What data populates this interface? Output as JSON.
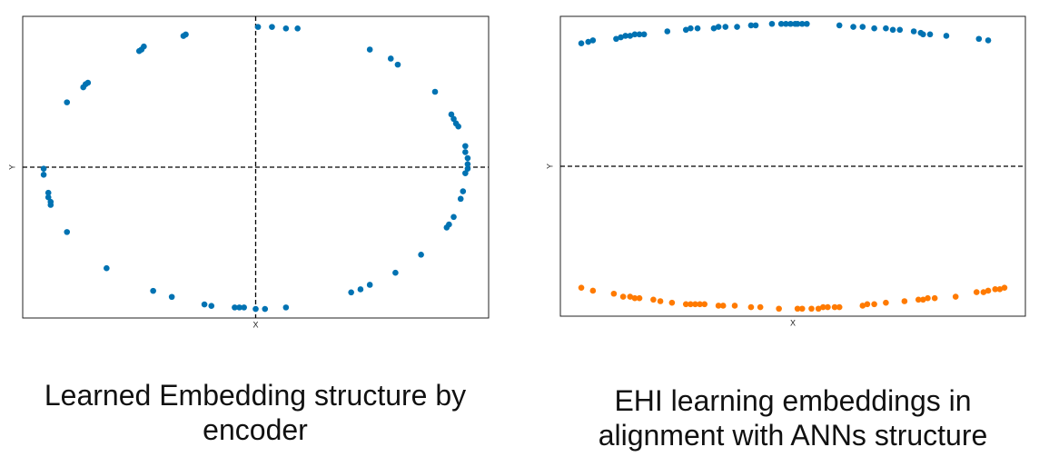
{
  "chart_data": [
    {
      "type": "scatter",
      "xlabel": "X",
      "ylabel": "Y",
      "caption": "Learned Embedding structure by encoder",
      "xlim": [
        -1,
        1
      ],
      "ylim": [
        -1,
        1
      ],
      "vlines": [
        0
      ],
      "hlines": [
        0
      ],
      "series": [
        {
          "color": "#0072b2",
          "x": [
            0.01,
            0.07,
            0.13,
            0.18,
            0.49,
            0.58,
            0.61,
            0.77,
            0.84,
            0.85,
            0.86,
            0.87,
            0.9,
            0.9,
            0.91,
            0.91,
            0.91,
            0.9,
            0.89,
            0.88,
            0.85,
            0.83,
            0.82,
            0.71,
            0.6,
            0.49,
            0.45,
            0.41,
            0.13,
            0.04,
            0.0,
            -0.05,
            -0.07,
            -0.09,
            -0.19,
            -0.22,
            -0.36,
            -0.44,
            -0.64,
            -0.81,
            -0.88,
            -0.88,
            -0.89,
            -0.89,
            -0.91,
            -0.91,
            -0.81,
            -0.74,
            -0.73,
            -0.72,
            -0.5,
            -0.49,
            -0.48,
            -0.31,
            -0.3
          ],
          "values": [
            0.93,
            0.93,
            0.92,
            0.92,
            0.78,
            0.72,
            0.68,
            0.5,
            0.35,
            0.32,
            0.29,
            0.27,
            0.14,
            0.1,
            0.06,
            0.02,
            -0.01,
            -0.04,
            -0.16,
            -0.21,
            -0.33,
            -0.38,
            -0.4,
            -0.58,
            -0.7,
            -0.78,
            -0.81,
            -0.83,
            -0.93,
            -0.94,
            -0.94,
            -0.93,
            -0.93,
            -0.93,
            -0.92,
            -0.91,
            -0.86,
            -0.82,
            -0.67,
            -0.43,
            -0.25,
            -0.23,
            -0.2,
            -0.17,
            -0.05,
            -0.01,
            0.43,
            0.53,
            0.55,
            0.56,
            0.77,
            0.78,
            0.8,
            0.87,
            0.88
          ]
        }
      ]
    },
    {
      "type": "scatter",
      "xlabel": "X",
      "ylabel": "Y",
      "caption": "EHI learning embeddings in alignment with ANNs structure",
      "xlim": [
        -1,
        1
      ],
      "ylim": [
        -1,
        1
      ],
      "hlines": [
        0
      ],
      "series": [
        {
          "color": "#0072b2",
          "x": [
            -0.91,
            -0.88,
            -0.86,
            -0.76,
            -0.74,
            -0.72,
            -0.7,
            -0.68,
            -0.66,
            -0.64,
            -0.54,
            -0.46,
            -0.44,
            -0.41,
            -0.34,
            -0.32,
            -0.29,
            -0.24,
            -0.18,
            -0.16,
            -0.09,
            -0.05,
            -0.03,
            -0.01,
            0.01,
            0.02,
            0.04,
            0.06,
            0.2,
            0.26,
            0.3,
            0.35,
            0.4,
            0.43,
            0.46,
            0.52,
            0.55,
            0.56,
            0.59,
            0.66,
            0.8,
            0.84
          ],
          "values": [
            0.82,
            0.83,
            0.84,
            0.85,
            0.86,
            0.87,
            0.87,
            0.88,
            0.88,
            0.88,
            0.9,
            0.91,
            0.92,
            0.92,
            0.92,
            0.93,
            0.93,
            0.93,
            0.94,
            0.94,
            0.95,
            0.95,
            0.95,
            0.95,
            0.95,
            0.95,
            0.95,
            0.95,
            0.94,
            0.93,
            0.93,
            0.92,
            0.92,
            0.91,
            0.91,
            0.9,
            0.89,
            0.88,
            0.88,
            0.87,
            0.85,
            0.84
          ]
        },
        {
          "color": "#ff7a00",
          "x": [
            -0.91,
            -0.86,
            -0.77,
            -0.73,
            -0.7,
            -0.68,
            -0.66,
            -0.6,
            -0.57,
            -0.52,
            -0.46,
            -0.44,
            -0.42,
            -0.4,
            -0.38,
            -0.32,
            -0.3,
            -0.25,
            -0.18,
            -0.14,
            -0.06,
            0.02,
            0.04,
            0.08,
            0.11,
            0.13,
            0.15,
            0.18,
            0.2,
            0.3,
            0.32,
            0.35,
            0.4,
            0.48,
            0.54,
            0.56,
            0.58,
            0.61,
            0.7,
            0.79,
            0.82,
            0.84,
            0.87,
            0.89,
            0.91
          ],
          "values": [
            -0.81,
            -0.83,
            -0.85,
            -0.87,
            -0.87,
            -0.88,
            -0.88,
            -0.89,
            -0.9,
            -0.91,
            -0.92,
            -0.92,
            -0.92,
            -0.92,
            -0.92,
            -0.93,
            -0.93,
            -0.93,
            -0.94,
            -0.94,
            -0.95,
            -0.95,
            -0.95,
            -0.95,
            -0.95,
            -0.94,
            -0.94,
            -0.94,
            -0.94,
            -0.93,
            -0.92,
            -0.92,
            -0.91,
            -0.9,
            -0.89,
            -0.89,
            -0.88,
            -0.88,
            -0.87,
            -0.84,
            -0.84,
            -0.83,
            -0.82,
            -0.82,
            -0.81
          ]
        }
      ]
    }
  ]
}
